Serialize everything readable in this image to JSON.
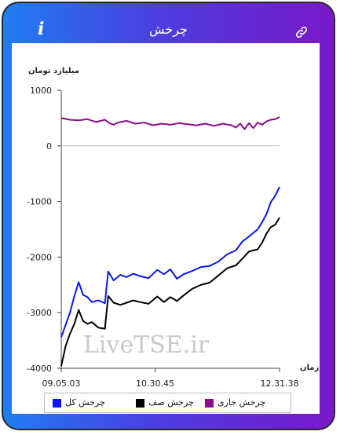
{
  "app": {
    "title": "چرخش",
    "info_label": "i",
    "watermark": "LiveTSE.ir"
  },
  "colors": {
    "background_gradient": [
      "#1f7df2",
      "#7a18c9"
    ],
    "total": "#0b18f0",
    "zero": "#000000",
    "current": "#8a0d8a"
  },
  "chart_data": {
    "type": "line",
    "ylabel": "میلیارد تومان",
    "xlabel": "زمان",
    "ylim": [
      -4000,
      1000
    ],
    "yticks": [
      1000,
      0,
      -1000,
      -2000,
      -3000,
      -4000
    ],
    "ytick_labels": [
      "1000",
      "0",
      "-1000",
      "-2000",
      "-3000",
      "-4000"
    ],
    "xticks": [
      "09.05.03",
      "10.30.45",
      "12.31.38"
    ],
    "xtick_positions": [
      0,
      0.43,
      1
    ],
    "grid": false,
    "legend": {
      "placement": "bottom",
      "order": [
        "current",
        "zero",
        "total"
      ]
    },
    "series": [
      {
        "id": "current",
        "name": "چرخش جاری",
        "color": "#8a0d8a",
        "points": [
          [
            0,
            500
          ],
          [
            0.04,
            470
          ],
          [
            0.08,
            460
          ],
          [
            0.12,
            480
          ],
          [
            0.16,
            430
          ],
          [
            0.2,
            470
          ],
          [
            0.22,
            410
          ],
          [
            0.24,
            380
          ],
          [
            0.26,
            420
          ],
          [
            0.3,
            450
          ],
          [
            0.34,
            400
          ],
          [
            0.38,
            420
          ],
          [
            0.42,
            370
          ],
          [
            0.46,
            400
          ],
          [
            0.5,
            380
          ],
          [
            0.54,
            410
          ],
          [
            0.58,
            390
          ],
          [
            0.62,
            370
          ],
          [
            0.66,
            400
          ],
          [
            0.7,
            360
          ],
          [
            0.74,
            400
          ],
          [
            0.78,
            370
          ],
          [
            0.8,
            330
          ],
          [
            0.82,
            400
          ],
          [
            0.84,
            300
          ],
          [
            0.86,
            410
          ],
          [
            0.88,
            320
          ],
          [
            0.9,
            420
          ],
          [
            0.92,
            380
          ],
          [
            0.94,
            440
          ],
          [
            0.96,
            470
          ],
          [
            0.98,
            480
          ],
          [
            1,
            520
          ]
        ]
      },
      {
        "id": "zero",
        "name": "چرخش صف",
        "color": "#000000",
        "points": [
          [
            0,
            -3960
          ],
          [
            0.02,
            -3600
          ],
          [
            0.04,
            -3380
          ],
          [
            0.06,
            -3200
          ],
          [
            0.08,
            -2950
          ],
          [
            0.1,
            -3150
          ],
          [
            0.12,
            -3200
          ],
          [
            0.14,
            -3170
          ],
          [
            0.17,
            -3270
          ],
          [
            0.2,
            -3290
          ],
          [
            0.215,
            -2700
          ],
          [
            0.24,
            -2820
          ],
          [
            0.27,
            -2860
          ],
          [
            0.3,
            -2820
          ],
          [
            0.33,
            -2780
          ],
          [
            0.36,
            -2810
          ],
          [
            0.4,
            -2840
          ],
          [
            0.44,
            -2710
          ],
          [
            0.47,
            -2810
          ],
          [
            0.5,
            -2720
          ],
          [
            0.53,
            -2790
          ],
          [
            0.56,
            -2690
          ],
          [
            0.6,
            -2570
          ],
          [
            0.64,
            -2500
          ],
          [
            0.68,
            -2460
          ],
          [
            0.72,
            -2330
          ],
          [
            0.76,
            -2200
          ],
          [
            0.8,
            -2150
          ],
          [
            0.83,
            -2030
          ],
          [
            0.86,
            -1900
          ],
          [
            0.9,
            -1860
          ],
          [
            0.92,
            -1740
          ],
          [
            0.94,
            -1580
          ],
          [
            0.96,
            -1460
          ],
          [
            0.98,
            -1420
          ],
          [
            1,
            -1290
          ]
        ]
      },
      {
        "id": "total",
        "name": "چرخش کل",
        "color": "#0b18f0",
        "points": [
          [
            0,
            -3440
          ],
          [
            0.02,
            -3220
          ],
          [
            0.04,
            -3000
          ],
          [
            0.06,
            -2700
          ],
          [
            0.08,
            -2450
          ],
          [
            0.1,
            -2680
          ],
          [
            0.12,
            -2720
          ],
          [
            0.14,
            -2810
          ],
          [
            0.17,
            -2780
          ],
          [
            0.2,
            -2830
          ],
          [
            0.215,
            -2260
          ],
          [
            0.24,
            -2420
          ],
          [
            0.27,
            -2320
          ],
          [
            0.3,
            -2360
          ],
          [
            0.33,
            -2300
          ],
          [
            0.36,
            -2340
          ],
          [
            0.4,
            -2380
          ],
          [
            0.44,
            -2230
          ],
          [
            0.47,
            -2310
          ],
          [
            0.5,
            -2220
          ],
          [
            0.53,
            -2390
          ],
          [
            0.56,
            -2310
          ],
          [
            0.6,
            -2250
          ],
          [
            0.64,
            -2180
          ],
          [
            0.68,
            -2160
          ],
          [
            0.72,
            -2080
          ],
          [
            0.76,
            -1950
          ],
          [
            0.8,
            -1880
          ],
          [
            0.83,
            -1720
          ],
          [
            0.86,
            -1630
          ],
          [
            0.9,
            -1500
          ],
          [
            0.92,
            -1370
          ],
          [
            0.94,
            -1230
          ],
          [
            0.96,
            -1010
          ],
          [
            0.98,
            -900
          ],
          [
            1,
            -740
          ]
        ]
      }
    ]
  }
}
